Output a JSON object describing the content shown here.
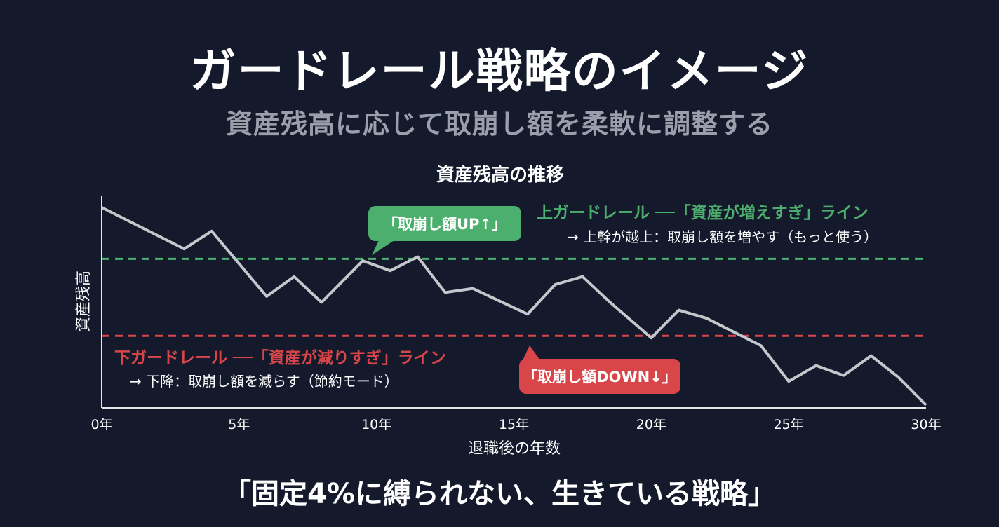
{
  "header": {
    "title": "ガードレール戦略のイメージ",
    "subtitle": "資産残高に応じて取崩し額を柔軟に調整する"
  },
  "footer": {
    "text": "「固定4%に縛られない、生きている戦略」"
  },
  "colors": {
    "background": "#141a2c",
    "upper_guardrail": "#4caf6e",
    "lower_guardrail": "#d9464a",
    "series": "#c4c7cc",
    "axis": "#e6e6e6"
  },
  "chart_data": {
    "type": "line",
    "title": "資産残高の推移",
    "xlabel": "退職後の年数",
    "ylabel": "資産残高",
    "xlim": [
      0,
      30
    ],
    "ylim": [
      0,
      100
    ],
    "grid": false,
    "x_ticks": [
      {
        "value": 0,
        "label": "0年"
      },
      {
        "value": 5,
        "label": "5年"
      },
      {
        "value": 10,
        "label": "10年"
      },
      {
        "value": 15,
        "label": "15年"
      },
      {
        "value": 20,
        "label": "20年"
      },
      {
        "value": 25,
        "label": "25年"
      },
      {
        "value": 30,
        "label": "30年"
      }
    ],
    "series": [
      {
        "x": [
          0,
          3,
          4,
          6,
          7,
          8,
          9.5,
          10.5,
          11.5,
          12.5,
          13.5,
          15.5,
          16.5,
          17.5,
          18.5,
          20,
          21,
          22,
          23,
          24,
          25,
          26,
          27,
          28,
          29,
          30
        ],
        "y": [
          100,
          79,
          88,
          55,
          65,
          52,
          73,
          68,
          75,
          57,
          59,
          46,
          61,
          65,
          52,
          34,
          48,
          44,
          37,
          30,
          12,
          20,
          15,
          25,
          14,
          0
        ]
      }
    ],
    "guardrails": {
      "upper": {
        "value": 74,
        "label": "上ガードレール ──「資産が増えすぎ」ライン",
        "note": "→ 上幹が越上：取崩し額を増やす（もっと使う）",
        "callout": "「取崩し額UP↑」"
      },
      "lower": {
        "value": 35,
        "label": "下ガードレール ──「資産が減りすぎ」ライン",
        "note": "→ 下降：取崩し額を減らす（節約モード）",
        "callout": "「取崩し額DOWN↓」"
      }
    }
  }
}
